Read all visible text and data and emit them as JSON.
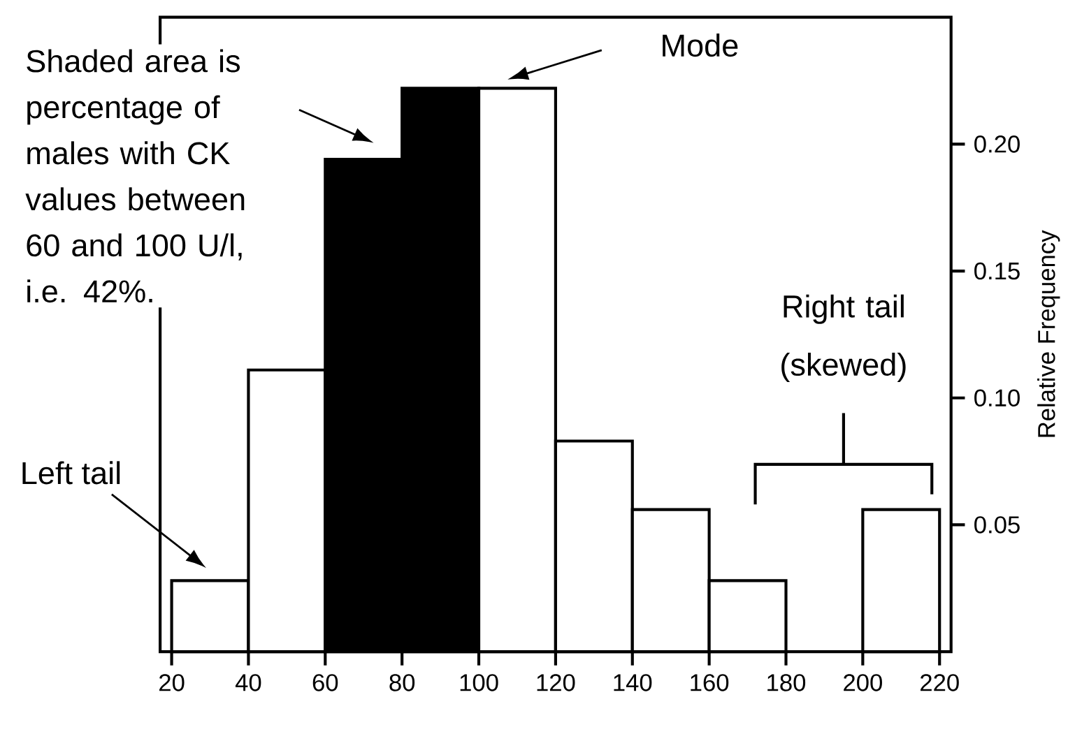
{
  "chart_data": {
    "type": "histogram",
    "ylabel": "Relative Frequency",
    "bins": [
      20,
      40,
      60,
      80,
      100,
      120,
      140,
      160,
      180,
      200,
      220
    ],
    "values": [
      0.028,
      0.111,
      0.194,
      0.222,
      0.222,
      0.083,
      0.056,
      0.028,
      0,
      0.056
    ],
    "colors": [
      "#ffffff",
      "#ffffff",
      "#000000",
      "#000000",
      "#ffffff",
      "#ffffff",
      "#ffffff",
      "#ffffff",
      "#ffffff",
      "#ffffff"
    ],
    "xlim": [
      17,
      223
    ],
    "ylim": [
      0,
      0.25
    ],
    "xticks": [
      20,
      40,
      60,
      80,
      100,
      120,
      140,
      160,
      180,
      200,
      220
    ],
    "yticks": [
      {
        "value": 0.05,
        "label": "0.05"
      },
      {
        "value": 0.1,
        "label": "0.10"
      },
      {
        "value": 0.15,
        "label": "0.15"
      },
      {
        "value": 0.2,
        "label": "0.20"
      }
    ],
    "annotations": [
      "Shaded area is percentage of males with CK values between 60 and 100 U/l, i.e. 42%.",
      "Mode",
      "Left tail",
      "Right tail (skewed)"
    ],
    "grid": false
  }
}
